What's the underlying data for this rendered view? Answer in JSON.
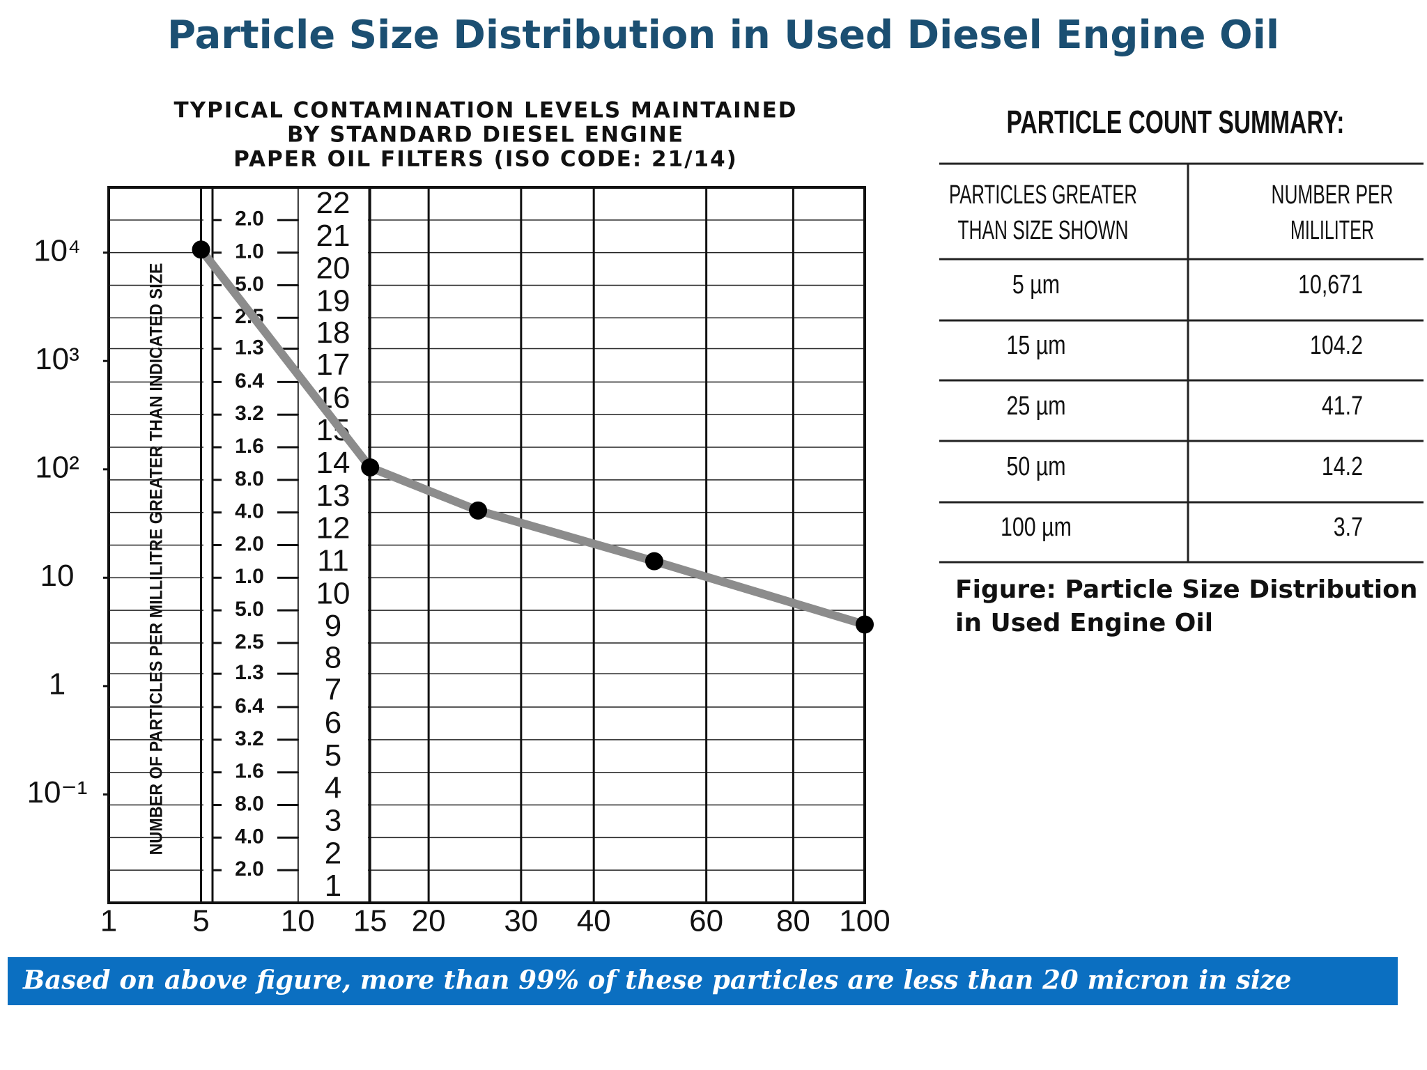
{
  "title": "Particle Size Distribution in Used Diesel Engine Oil",
  "chart_data": {
    "type": "line",
    "title": [
      "TYPICAL CONTAMINATION LEVELS MAINTAINED",
      "BY STANDARD DIESEL ENGINE",
      "PAPER OIL FILTERS (ISO CODE: 21/14)"
    ],
    "y_label": "NUMBER OF PARTICLES PER MILLILITRE GREATER THAN INDICATED SIZE",
    "x": [
      5,
      15,
      25,
      50,
      100
    ],
    "values": [
      10671,
      104.2,
      41.7,
      14.2,
      3.7
    ],
    "line_color": "#8c8c8c",
    "marker_color": "#000000",
    "xscale": "log-squared",
    "yscale": "log",
    "xlim": [
      1,
      100
    ],
    "xticks": [
      1,
      5,
      10,
      15,
      20,
      30,
      40,
      60,
      80,
      100
    ],
    "ylim": [
      0.01,
      40000
    ],
    "yticks": [
      {
        "value": 10000,
        "label": "10⁴"
      },
      {
        "value": 1000,
        "label": "10³"
      },
      {
        "value": 100,
        "label": "10²"
      },
      10,
      1,
      {
        "value": 0.1,
        "label": "10⁻¹"
      }
    ],
    "y_iso_ticks": [
      {
        "value": 20000,
        "label": "2.0"
      },
      {
        "value": 10000,
        "label": "1.0"
      },
      {
        "value": 5000,
        "label": "5.0"
      },
      {
        "value": 2500,
        "label": "2.5"
      },
      {
        "value": 1300,
        "label": "1.3"
      },
      {
        "value": 640,
        "label": "6.4"
      },
      {
        "value": 320,
        "label": "3.2"
      },
      {
        "value": 160,
        "label": "1.6"
      },
      {
        "value": 80,
        "label": "8.0"
      },
      {
        "value": 40,
        "label": "4.0"
      },
      {
        "value": 20,
        "label": "2.0"
      },
      {
        "value": 10,
        "label": "1.0"
      },
      {
        "value": 5,
        "label": "5.0"
      },
      {
        "value": 2.5,
        "label": "2.5"
      },
      {
        "value": 1.3,
        "label": "1.3"
      },
      {
        "value": 0.64,
        "label": "6.4"
      },
      {
        "value": 0.32,
        "label": "3.2"
      },
      {
        "value": 0.16,
        "label": "1.6"
      },
      {
        "value": 0.08,
        "label": "8.0"
      },
      {
        "value": 0.04,
        "label": "4.0"
      },
      {
        "value": 0.02,
        "label": "2.0"
      }
    ],
    "iso_codes": [
      22,
      21,
      20,
      19,
      18,
      17,
      16,
      15,
      14,
      13,
      12,
      11,
      10,
      9,
      8,
      7,
      6,
      5,
      4,
      3,
      2,
      1
    ],
    "grid": true
  },
  "table": {
    "title": "PARTICLE COUNT SUMMARY:",
    "header": [
      [
        "PARTICLES GREATER",
        "THAN SIZE SHOWN"
      ],
      [
        "NUMBER PER",
        "MILILITER"
      ]
    ],
    "rows": [
      [
        "5 µm",
        "10,671"
      ],
      [
        "15 µm",
        "104.2"
      ],
      [
        "25 µm",
        "41.7"
      ],
      [
        "50 µm",
        "14.2"
      ],
      [
        "100 µm",
        "3.7"
      ]
    ]
  },
  "caption": [
    "Figure: Particle Size Distribution",
    "in Used Engine Oil"
  ],
  "banner": "Based on above figure, more than 99% of these particles are less than 20 micron in size"
}
